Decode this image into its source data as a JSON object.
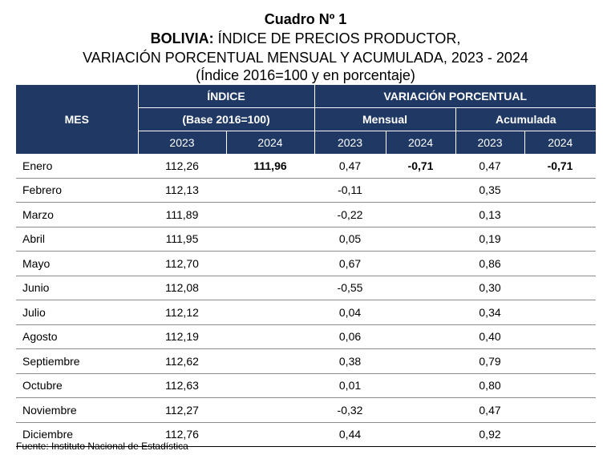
{
  "header": {
    "title": "Cuadro Nº 1",
    "subtitle_bold": "BOLIVIA:",
    "subtitle_rest": " ÍNDICE DE PRECIOS PRODUCTOR,",
    "subtitle_line2": "VARIACIÓN PORCENTUAL MENSUAL Y ACUMULADA, 2023 - 2024",
    "subtitle_line3": "(Índice 2016=100 y en porcentaje)"
  },
  "table": {
    "col_mes": "MES",
    "col_indice": "ÍNDICE",
    "col_variacion": "VARIACIÓN PORCENTUAL",
    "col_base": "(Base 2016=100)",
    "col_mensual": "Mensual",
    "col_acumulada": "Acumulada",
    "years": [
      "2023",
      "2024",
      "2023",
      "2024",
      "2023",
      "2024"
    ],
    "rows": [
      {
        "mes": "Enero",
        "i2023": "112,26",
        "i2024": "111,96",
        "m2023": "0,47",
        "m2024": "-0,71",
        "a2023": "0,47",
        "a2024": "-0,71"
      },
      {
        "mes": "Febrero",
        "i2023": "112,13",
        "i2024": "",
        "m2023": "-0,11",
        "m2024": "",
        "a2023": "0,35",
        "a2024": ""
      },
      {
        "mes": "Marzo",
        "i2023": "111,89",
        "i2024": "",
        "m2023": "-0,22",
        "m2024": "",
        "a2023": "0,13",
        "a2024": ""
      },
      {
        "mes": "Abril",
        "i2023": "111,95",
        "i2024": "",
        "m2023": "0,05",
        "m2024": "",
        "a2023": "0,19",
        "a2024": ""
      },
      {
        "mes": "Mayo",
        "i2023": "112,70",
        "i2024": "",
        "m2023": "0,67",
        "m2024": "",
        "a2023": "0,86",
        "a2024": ""
      },
      {
        "mes": "Junio",
        "i2023": "112,08",
        "i2024": "",
        "m2023": "-0,55",
        "m2024": "",
        "a2023": "0,30",
        "a2024": ""
      },
      {
        "mes": "Julio",
        "i2023": "112,12",
        "i2024": "",
        "m2023": "0,04",
        "m2024": "",
        "a2023": "0,34",
        "a2024": ""
      },
      {
        "mes": "Agosto",
        "i2023": "112,19",
        "i2024": "",
        "m2023": "0,06",
        "m2024": "",
        "a2023": "0,40",
        "a2024": ""
      },
      {
        "mes": "Septiembre",
        "i2023": "112,62",
        "i2024": "",
        "m2023": "0,38",
        "m2024": "",
        "a2023": "0,79",
        "a2024": ""
      },
      {
        "mes": "Octubre",
        "i2023": "112,63",
        "i2024": "",
        "m2023": "0,01",
        "m2024": "",
        "a2023": "0,80",
        "a2024": ""
      },
      {
        "mes": "Noviembre",
        "i2023": "112,27",
        "i2024": "",
        "m2023": "-0,32",
        "m2024": "",
        "a2023": "0,47",
        "a2024": ""
      },
      {
        "mes": "Diciembre",
        "i2023": "112,76",
        "i2024": "",
        "m2023": "0,44",
        "m2024": "",
        "a2023": "0,92",
        "a2024": ""
      }
    ]
  },
  "footer": {
    "source": "Fuente: Instituto Nacional de Estadística"
  },
  "colors": {
    "header_bg": "#1f3864",
    "header_text": "#ffffff"
  }
}
